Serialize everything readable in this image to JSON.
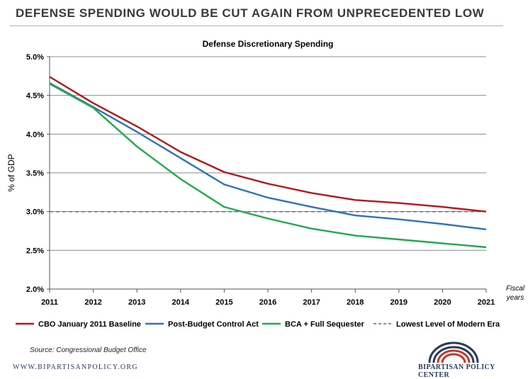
{
  "headline": "DEFENSE SPENDING WOULD BE CUT AGAIN FROM UNPRECEDENTED LOW",
  "source": "Source: Congressional Budget Office",
  "website": "WWW.BIPARTISANPOLICY.ORG",
  "organization": "BIPARTISAN POLICY CENTER",
  "chart_data": {
    "type": "line",
    "title": "Defense Discretionary Spending",
    "ylabel": "% of GDP",
    "xlabel_lines": [
      "Fiscal",
      "years"
    ],
    "x": [
      2011,
      2012,
      2013,
      2014,
      2015,
      2016,
      2017,
      2018,
      2019,
      2020,
      2021
    ],
    "ylim": [
      0.02,
      0.05
    ],
    "yticks": [
      "2.0%",
      "2.5%",
      "3.0%",
      "3.5%",
      "4.0%",
      "4.5%",
      "5.0%"
    ],
    "ytick_values": [
      0.02,
      0.025,
      0.03,
      0.035,
      0.04,
      0.045,
      0.05
    ],
    "grid": "horizontal",
    "legend_position": "bottom",
    "series": [
      {
        "name": "CBO January 2011 Baseline",
        "color": "#b0191d",
        "dash": false,
        "values": [
          0.0474,
          0.044,
          0.041,
          0.0377,
          0.0351,
          0.0336,
          0.0324,
          0.0315,
          0.0311,
          0.0306,
          0.03
        ]
      },
      {
        "name": "Post-Budget Control Act",
        "color": "#2d74b5",
        "dash": false,
        "values": [
          0.0466,
          0.0435,
          0.0403,
          0.0369,
          0.0335,
          0.0318,
          0.0306,
          0.0295,
          0.029,
          0.0284,
          0.0277
        ]
      },
      {
        "name": "BCA + Full Sequester",
        "color": "#1faa50",
        "dash": false,
        "values": [
          0.0465,
          0.0434,
          0.0384,
          0.0342,
          0.0306,
          0.0291,
          0.0278,
          0.0269,
          0.0264,
          0.0259,
          0.0254
        ]
      },
      {
        "name": "Lowest Level of Modern Era",
        "color": "#7a5a90",
        "dash": true,
        "values": [
          0.03,
          0.03,
          0.03,
          0.03,
          0.03,
          0.03,
          0.03,
          0.03,
          0.03,
          0.03,
          0.03
        ]
      }
    ]
  }
}
